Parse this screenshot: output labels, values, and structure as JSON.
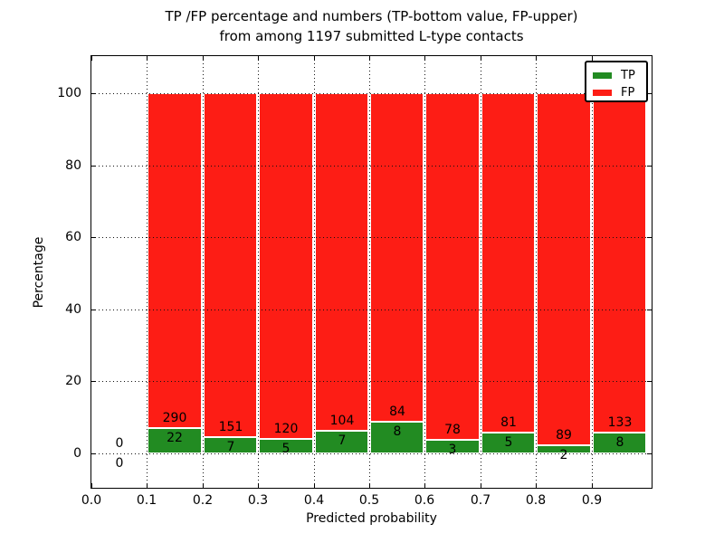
{
  "figure": {
    "title_line1": "TP /FP percentage and numbers (TP-bottom value, FP-upper)",
    "title_line2": "from among 1197 submitted L-type contacts",
    "xlabel": "Predicted probability",
    "ylabel": "Percentage"
  },
  "legend": {
    "items": [
      {
        "label": "TP",
        "color": "#228b22"
      },
      {
        "label": "FP",
        "color": "#fd1d15"
      }
    ]
  },
  "chart_data": {
    "type": "bar",
    "subtype": "stacked-percentage",
    "title": "TP /FP percentage and numbers (TP-bottom value, FP-upper) from among 1197 submitted L-type contacts",
    "xlabel": "Predicted probability",
    "ylabel": "Percentage",
    "total_contacts": 1197,
    "legend_position": "upper right",
    "grid": "dotted",
    "xlim": [
      0.0,
      1.01
    ],
    "ylim": [
      -10,
      110.5
    ],
    "x_tick_values": [
      0.0,
      0.1,
      0.2,
      0.3,
      0.4,
      0.5,
      0.6,
      0.7,
      0.8,
      0.9
    ],
    "x_tick_labels": [
      "0.0",
      "0.1",
      "0.2",
      "0.3",
      "0.4",
      "0.5",
      "0.6",
      "0.7",
      "0.8",
      "0.9"
    ],
    "y_ticks": [
      0,
      20,
      40,
      60,
      80,
      100
    ],
    "series": [
      {
        "name": "TP",
        "color": "#228b22",
        "position": "bottom"
      },
      {
        "name": "FP",
        "color": "#fd1d15",
        "position": "top"
      }
    ],
    "bins": [
      {
        "range": [
          0.0,
          0.1
        ],
        "tp": 0,
        "fp": 0,
        "tp_pct": 0.0,
        "fp_pct": 0.0
      },
      {
        "range": [
          0.1,
          0.2
        ],
        "tp": 22,
        "fp": 290,
        "tp_pct": 7.05,
        "fp_pct": 92.95
      },
      {
        "range": [
          0.2,
          0.3
        ],
        "tp": 7,
        "fp": 151,
        "tp_pct": 4.43,
        "fp_pct": 95.57
      },
      {
        "range": [
          0.3,
          0.4
        ],
        "tp": 5,
        "fp": 120,
        "tp_pct": 4.0,
        "fp_pct": 96.0
      },
      {
        "range": [
          0.4,
          0.5
        ],
        "tp": 7,
        "fp": 104,
        "tp_pct": 6.31,
        "fp_pct": 93.69
      },
      {
        "range": [
          0.5,
          0.6
        ],
        "tp": 8,
        "fp": 84,
        "tp_pct": 8.7,
        "fp_pct": 91.3
      },
      {
        "range": [
          0.6,
          0.7
        ],
        "tp": 3,
        "fp": 78,
        "tp_pct": 3.7,
        "fp_pct": 96.3
      },
      {
        "range": [
          0.7,
          0.8
        ],
        "tp": 5,
        "fp": 81,
        "tp_pct": 5.81,
        "fp_pct": 94.19
      },
      {
        "range": [
          0.8,
          0.9
        ],
        "tp": 2,
        "fp": 89,
        "tp_pct": 2.2,
        "fp_pct": 97.8
      },
      {
        "range": [
          0.9,
          1.0
        ],
        "tp": 8,
        "fp": 133,
        "tp_pct": 5.67,
        "fp_pct": 94.33
      }
    ]
  }
}
